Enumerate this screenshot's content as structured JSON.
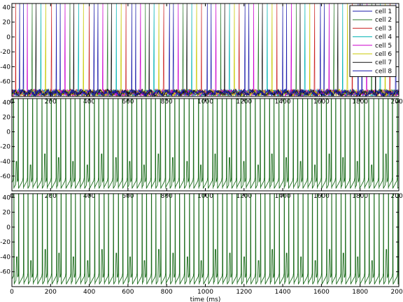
{
  "chart_data": [
    {
      "type": "line",
      "title": "",
      "xlabel": "",
      "ylabel": "",
      "xlim": [
        0,
        2000
      ],
      "ylim": [
        -80,
        45
      ],
      "x_ticks": [
        0,
        200,
        400,
        600,
        800,
        1000,
        1200,
        1400,
        1600,
        1800,
        2000
      ],
      "x_tick_labels": [
        "0",
        "200",
        "400",
        "600",
        "800",
        "1000",
        "1200",
        "1400",
        "1600",
        "1800",
        "2000"
      ],
      "y_ticks": [
        40,
        20,
        0,
        -20,
        -40,
        -60
      ],
      "y_tick_labels": [
        "40",
        "20",
        "0",
        "-20",
        "-40",
        "-60"
      ],
      "legend_position": "top-right",
      "baseline_mv": -75,
      "spike_peak_mv": 45,
      "series": [
        {
          "name": "cell 1",
          "color": "#1a1aaa",
          "spike_times_ms": [
            60,
            250,
            445,
            640,
            835,
            1030,
            1225,
            1420,
            1615,
            1810
          ]
        },
        {
          "name": "cell 2",
          "color": "#2e7d2e",
          "spike_times_ms": [
            105,
            300,
            495,
            690,
            885,
            1080,
            1275,
            1470,
            1665,
            1860
          ]
        },
        {
          "name": "cell 3",
          "color": "#cc2222",
          "spike_times_ms": [
            20,
            205,
            400,
            590,
            785,
            980,
            1175,
            1370,
            1565,
            1760,
            1955
          ]
        },
        {
          "name": "cell 4",
          "color": "#00b3b3",
          "spike_times_ms": [
            150,
            345,
            540,
            735,
            930,
            1125,
            1320,
            1515,
            1710,
            1905
          ]
        },
        {
          "name": "cell 5",
          "color": "#cc00cc",
          "spike_times_ms": [
            80,
            275,
            470,
            665,
            860,
            1055,
            1250,
            1445,
            1640,
            1835
          ]
        },
        {
          "name": "cell 6",
          "color": "#c8c800",
          "spike_times_ms": [
            175,
            370,
            565,
            760,
            955,
            1150,
            1345,
            1540,
            1735,
            1930
          ]
        },
        {
          "name": "cell 7",
          "color": "#111111",
          "spike_times_ms": [
            125,
            320,
            515,
            710,
            905,
            1100,
            1295,
            1490,
            1685,
            1880
          ]
        },
        {
          "name": "cell 8",
          "color": "#1a1aaa",
          "spike_times_ms": [
            40,
            230,
            425,
            620,
            815,
            1010,
            1205,
            1400,
            1595,
            1790,
            1985
          ]
        }
      ]
    },
    {
      "type": "line",
      "title": "",
      "xlabel": "",
      "ylabel": "",
      "xlim": [
        0,
        2000
      ],
      "ylim": [
        -80,
        45
      ],
      "x_ticks": [
        0,
        200,
        400,
        600,
        800,
        1000,
        1200,
        1400,
        1600,
        1800,
        2000
      ],
      "x_tick_labels": [
        "0",
        "200",
        "400",
        "600",
        "800",
        "1000",
        "1200",
        "1400",
        "1600",
        "1800",
        "2000"
      ],
      "y_ticks": [
        40,
        20,
        0,
        -20,
        -40,
        -60
      ],
      "y_tick_labels": [
        "40",
        "20",
        "0",
        "-20",
        "-40",
        "-60"
      ],
      "baseline_mv": -77,
      "series": [
        {
          "color": "#1a6b1a",
          "spike_interval_ms": 24.5,
          "first_spike_ms": 8
        }
      ]
    },
    {
      "type": "line",
      "title": "",
      "xlabel": "time (ms)",
      "ylabel": "",
      "xlim": [
        0,
        2000
      ],
      "ylim": [
        -80,
        45
      ],
      "x_ticks": [
        0,
        200,
        400,
        600,
        800,
        1000,
        1200,
        1400,
        1600,
        1800,
        2000
      ],
      "x_tick_labels": [
        "0",
        "200",
        "400",
        "600",
        "800",
        "1000",
        "1200",
        "1400",
        "1600",
        "1800",
        "2000"
      ],
      "y_ticks": [
        40,
        20,
        0,
        -20,
        -40,
        -60
      ],
      "y_tick_labels": [
        "40",
        "20",
        "0",
        "-20",
        "-40",
        "-60"
      ],
      "baseline_mv": -77,
      "series": [
        {
          "color": "#1a6b1a",
          "spike_interval_ms": 24.5,
          "first_spike_ms": 10
        }
      ]
    }
  ]
}
